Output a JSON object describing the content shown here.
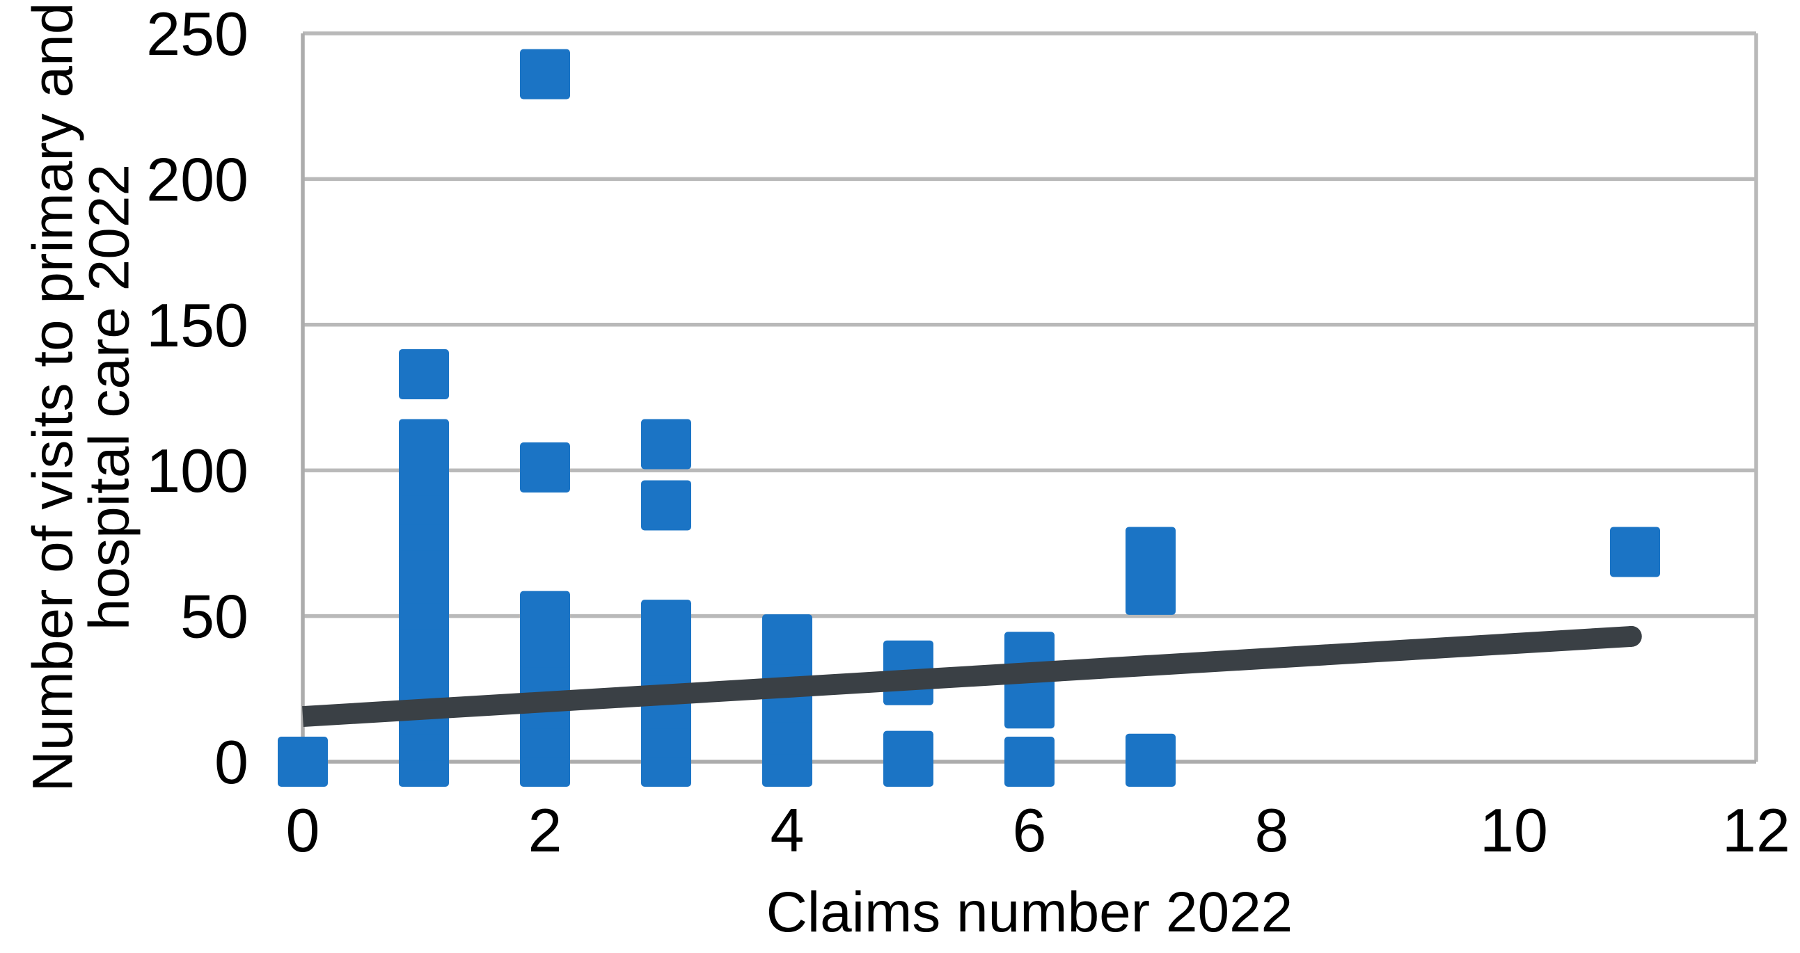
{
  "chart_data": {
    "type": "scatter",
    "title": "",
    "xlabel": "Claims number 2022",
    "ylabel": "Number of visits to primary and hospital care 2022",
    "ylabel_line1": "Number of visits to primary and",
    "ylabel_line2": "hospital care 2022",
    "xlim": [
      0,
      12
    ],
    "ylim": [
      0,
      250
    ],
    "x_ticks": [
      0,
      2,
      4,
      6,
      8,
      10,
      12
    ],
    "y_ticks": [
      0,
      50,
      100,
      150,
      200,
      250
    ],
    "grid": "horizontal-only",
    "legend_position": "none",
    "marker_shape": "square",
    "points": [
      [
        0,
        0
      ],
      [
        1,
        0
      ],
      [
        1,
        9
      ],
      [
        1,
        18
      ],
      [
        1,
        27
      ],
      [
        1,
        36
      ],
      [
        1,
        45
      ],
      [
        1,
        54
      ],
      [
        1,
        63
      ],
      [
        1,
        72
      ],
      [
        1,
        81
      ],
      [
        1,
        90
      ],
      [
        1,
        100
      ],
      [
        1,
        109
      ],
      [
        1,
        133
      ],
      [
        2,
        0
      ],
      [
        2,
        10
      ],
      [
        2,
        20
      ],
      [
        2,
        30
      ],
      [
        2,
        41
      ],
      [
        2,
        50
      ],
      [
        2,
        101
      ],
      [
        2,
        236
      ],
      [
        3,
        0
      ],
      [
        3,
        10
      ],
      [
        3,
        20
      ],
      [
        3,
        29
      ],
      [
        3,
        38
      ],
      [
        3,
        47
      ],
      [
        3,
        88
      ],
      [
        3,
        109
      ],
      [
        4,
        0
      ],
      [
        4,
        11
      ],
      [
        4,
        22
      ],
      [
        4,
        33
      ],
      [
        4,
        42
      ],
      [
        5,
        0
      ],
      [
        5,
        2
      ],
      [
        5,
        28
      ],
      [
        5,
        33
      ],
      [
        6,
        0
      ],
      [
        6,
        20
      ],
      [
        6,
        36
      ],
      [
        7,
        0
      ],
      [
        7,
        1
      ],
      [
        7,
        59
      ],
      [
        7,
        72
      ],
      [
        11,
        72
      ]
    ],
    "trendline": {
      "x1": 0,
      "y1": 15.5,
      "x2": 10.97,
      "y2": 43
    },
    "colors": {
      "marker": "#1B74C5",
      "trendline": "#3A4045",
      "gridline": "#B9B9B9",
      "axis": "#ACACAC",
      "text": "#000000",
      "background": "#FFFFFF"
    }
  }
}
